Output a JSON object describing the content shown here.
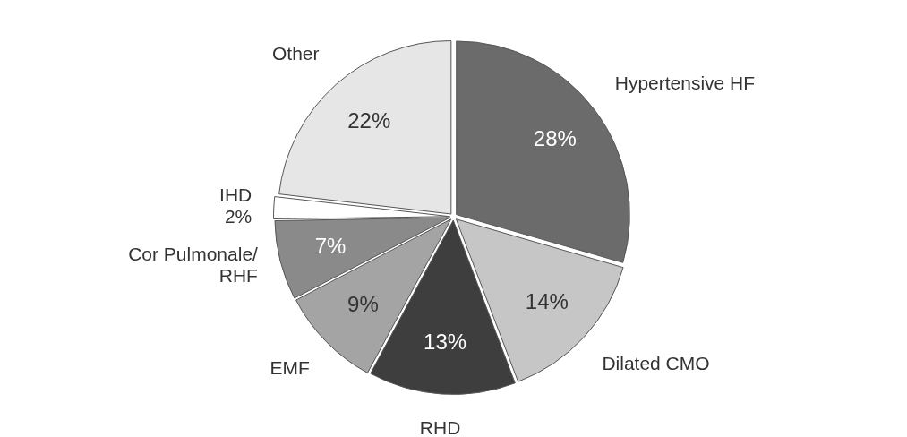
{
  "chart_data": {
    "type": "pie",
    "categories": [
      "Hypertensive HF",
      "Dilated CMO",
      "RHD",
      "EMF",
      "Cor Pulmonale/RHF",
      "IHD",
      "Other"
    ],
    "values": [
      28,
      14,
      13,
      9,
      7,
      2,
      22
    ],
    "value_labels": [
      "28%",
      "14%",
      "13%",
      "9%",
      "7%",
      "2%",
      "22%"
    ],
    "colors": [
      "#6b6b6b",
      "#c6c6c6",
      "#3e3e3e",
      "#a4a4a4",
      "#8a8a8a",
      "#ffffff",
      "#e6e6e6"
    ],
    "data_labels": true
  }
}
